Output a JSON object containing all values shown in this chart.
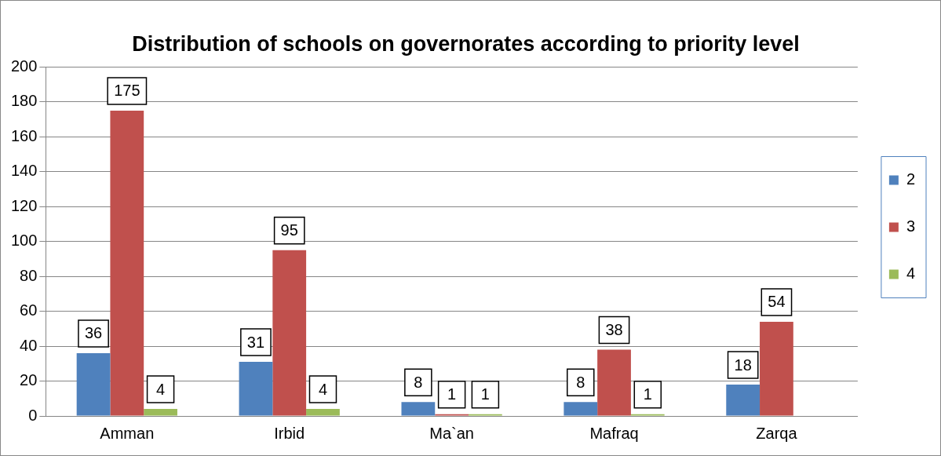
{
  "chart_data": {
    "type": "bar",
    "title": "Distribution of schools on governorates according to priority level",
    "categories": [
      "Amman",
      "Irbid",
      "Ma`an",
      "Mafraq",
      "Zarqa"
    ],
    "series": [
      {
        "name": "2",
        "color": "#4f81bd",
        "values": [
          36,
          31,
          8,
          8,
          18
        ]
      },
      {
        "name": "3",
        "color": "#c0504d",
        "values": [
          175,
          95,
          1,
          38,
          54
        ]
      },
      {
        "name": "4",
        "color": "#9bbb59",
        "values": [
          4,
          4,
          1,
          1,
          null
        ]
      }
    ],
    "ylim": [
      0,
      200
    ],
    "yticks": [
      0,
      20,
      40,
      60,
      80,
      100,
      120,
      140,
      160,
      180,
      200
    ],
    "grid": "y",
    "legend": "right",
    "data_labels": true
  }
}
